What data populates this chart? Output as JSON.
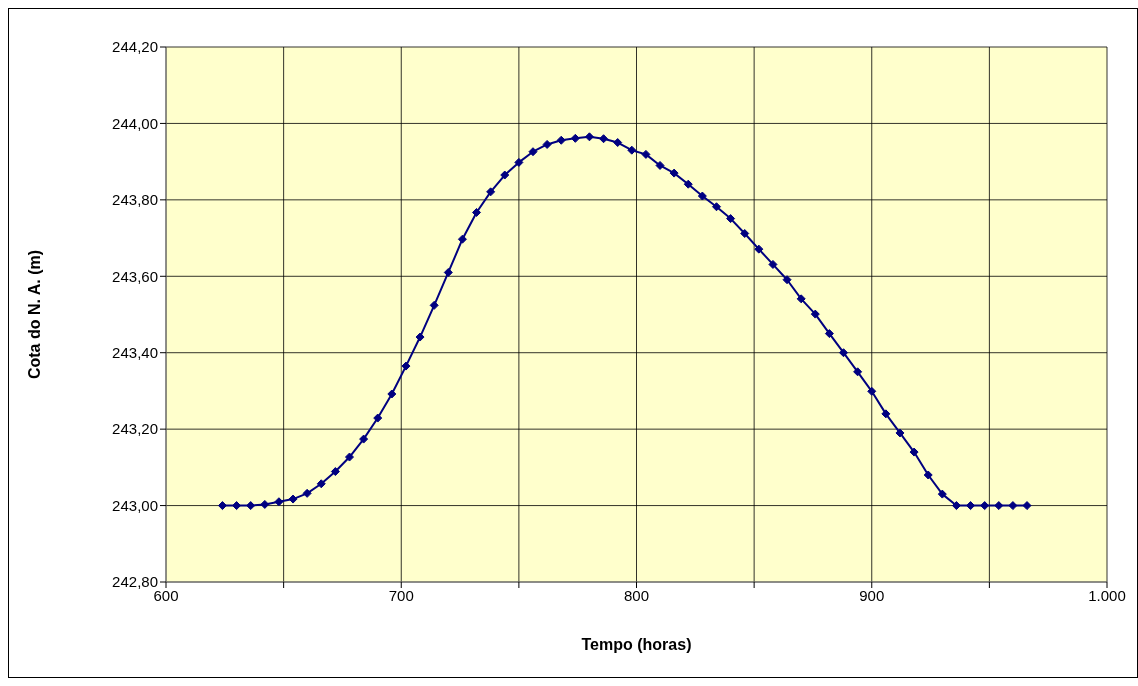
{
  "chart_data": {
    "type": "line",
    "xlabel": "Tempo (horas)",
    "ylabel": "Cota do N. A. (m)",
    "x": [
      624,
      630,
      636,
      642,
      648,
      654,
      660,
      666,
      672,
      678,
      684,
      690,
      696,
      702,
      708,
      714,
      720,
      726,
      732,
      738,
      744,
      750,
      756,
      762,
      768,
      774,
      780,
      786,
      792,
      798,
      804,
      810,
      816,
      822,
      828,
      834,
      840,
      846,
      852,
      858,
      864,
      870,
      876,
      882,
      888,
      894,
      900,
      906,
      912,
      918,
      924,
      930,
      936,
      942,
      948,
      954,
      960,
      966
    ],
    "series": [
      {
        "color": "#000080",
        "values": [
          243.0,
          243.0,
          243.0,
          243.003,
          243.01,
          243.017,
          243.032,
          243.057,
          243.089,
          243.127,
          243.174,
          243.229,
          243.292,
          243.365,
          243.441,
          243.524,
          243.61,
          243.697,
          243.767,
          243.821,
          243.865,
          243.898,
          243.926,
          243.945,
          243.956,
          243.961,
          243.965,
          243.96,
          243.95,
          243.93,
          243.919,
          243.89,
          243.87,
          243.841,
          243.81,
          243.782,
          243.751,
          243.712,
          243.671,
          243.631,
          243.591,
          243.541,
          243.501,
          243.45,
          243.4,
          243.35,
          243.299,
          243.24,
          243.19,
          243.14,
          243.08,
          243.03,
          243.0,
          243.0,
          243.0,
          243.0,
          243.0,
          243.0
        ]
      }
    ],
    "xlim": [
      600,
      1000
    ],
    "xticks": [
      600,
      {
        "value": 650,
        "label": null
      },
      700,
      {
        "value": 750,
        "label": null
      },
      800,
      {
        "value": 850,
        "label": null
      },
      900,
      {
        "value": 950,
        "label": null
      },
      {
        "value": 1000,
        "label": "1.000"
      }
    ],
    "ylim": [
      242.8,
      244.2
    ],
    "yticks": [
      {
        "value": 242.8,
        "label": "242,80"
      },
      {
        "value": 243.0,
        "label": "243,00"
      },
      {
        "value": 243.2,
        "label": "243,20"
      },
      {
        "value": 243.4,
        "label": "243,40"
      },
      {
        "value": 243.6,
        "label": "243,60"
      },
      {
        "value": 243.8,
        "label": "243,80"
      },
      {
        "value": 244.0,
        "label": "244,00"
      },
      {
        "value": 244.2,
        "label": "244,20"
      }
    ],
    "grid": true,
    "marker": "diamond",
    "line_style": "solid"
  }
}
